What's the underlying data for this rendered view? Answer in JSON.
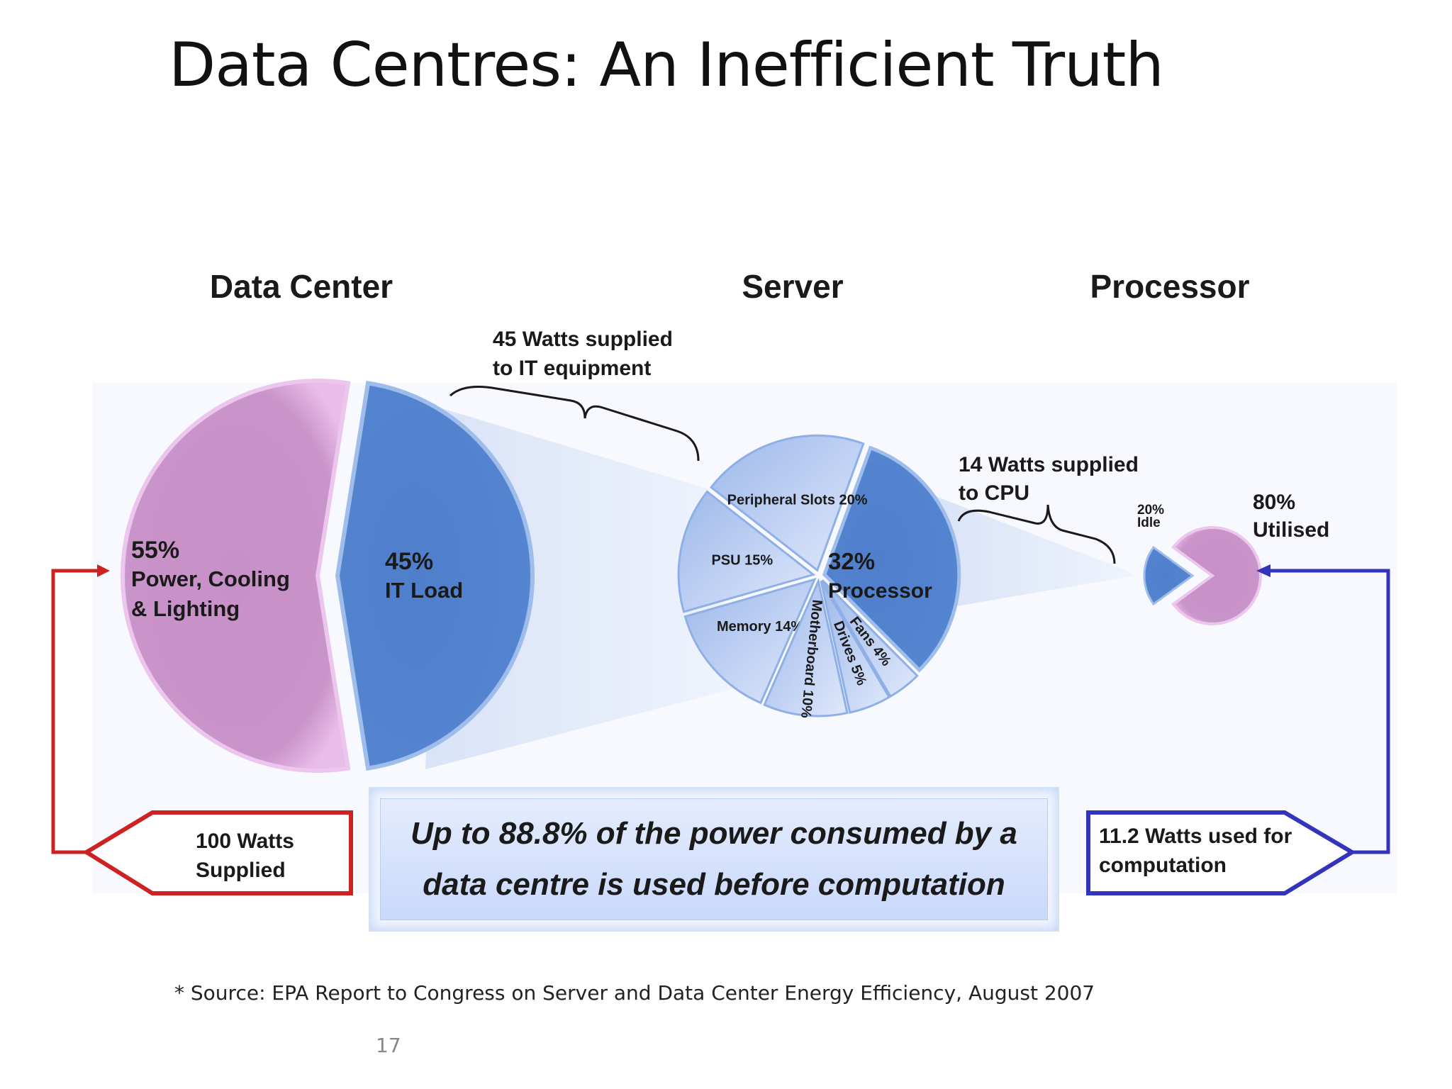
{
  "title": "Data Centres: An Inefficient Truth",
  "sections": {
    "data_center": "Data Center",
    "server": "Server",
    "processor": "Processor"
  },
  "data_center_pie": {
    "overhead": {
      "percent": "55%",
      "line1": "Power, Cooling",
      "line2": "& Lighting",
      "value": 55,
      "color": "#cc99cc"
    },
    "it_load": {
      "percent": "45%",
      "line1": "IT Load",
      "value": 45,
      "color": "#5b87cf"
    }
  },
  "brace_it": {
    "line1": "45 Watts supplied",
    "line2": "to IT equipment"
  },
  "server_pie": {
    "processor": {
      "percent": "32%",
      "line1": "Processor",
      "value": 32
    },
    "slices": [
      {
        "label": "Peripheral Slots 20%",
        "value": 20
      },
      {
        "label": "PSU 15%",
        "value": 15
      },
      {
        "label": "Memory 14%",
        "value": 14
      },
      {
        "label": "Motherboard 10%",
        "value": 10
      },
      {
        "label": "Drives 5%",
        "value": 5
      },
      {
        "label": "Fans 4%",
        "value": 4
      }
    ]
  },
  "brace_cpu": {
    "line1": "14 Watts supplied",
    "line2": "to CPU"
  },
  "processor_pie": {
    "idle": {
      "line1": "20%",
      "line2": "Idle",
      "value": 20
    },
    "utilised": {
      "line1": "80%",
      "line2": "Utilised",
      "value": 80
    }
  },
  "input_arrow": {
    "line1": "100 Watts",
    "line2": "Supplied",
    "color": "#cc2222"
  },
  "output_arrow": {
    "line1": "11.2 Watts used for",
    "line2": "computation",
    "color": "#3333bb"
  },
  "callout": "Up to 88.8% of the power consumed by a data centre is used before computation",
  "source": "* Source: EPA Report to Congress on Server and Data Center Energy Efficiency, August 2007",
  "page_number": "17"
}
